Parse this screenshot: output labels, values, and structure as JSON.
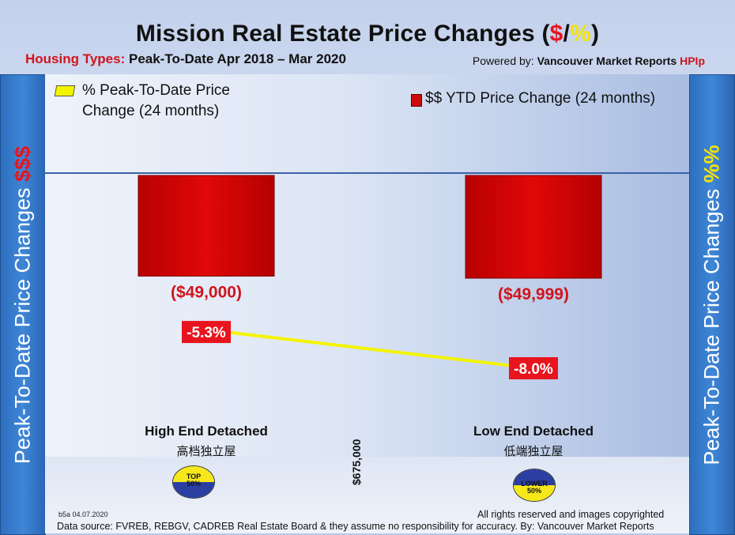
{
  "header": {
    "title_main": "Mission Real Estate Price Changes (",
    "title_dollar": "$",
    "title_slash": "/",
    "title_pct": "%",
    "title_close": ")",
    "housing_types_label": "Housing Types:",
    "period": "Peak-To-Date Apr 2018 – Mar 2020",
    "powered_by_label": "Powered by:",
    "powered_by_name": "Vancouver Market Reports",
    "powered_by_hpi": "HPIp"
  },
  "side_labels": {
    "left_text": "Peak-To-Date Price Changes ",
    "left_symbol": "$$$",
    "right_text": "Peak-To-Date  Price  Changes ",
    "right_symbol": "%%"
  },
  "legend": {
    "pct_line": "% Peak-To-Date Price",
    "pct_line_2": "Change (24 months)",
    "dollar_bar": "$$ YTD Price Change (24 months)"
  },
  "chart_data": {
    "type": "bar",
    "categories": [
      "High End Detached",
      "Low End Detached"
    ],
    "categories_sub": [
      "高档独立屋",
      "低端独立屋"
    ],
    "series": [
      {
        "name": "$$ YTD Price Change (24 months)",
        "values": [
          -49000,
          -49999
        ],
        "labels": [
          "($49,000)",
          "($49,999)"
        ],
        "color": "#cc0000"
      },
      {
        "name": "% Peak-To-Date Price Change (24 months)",
        "values": [
          -5.3,
          -8.0
        ],
        "labels": [
          "-5.3%",
          "-8.0%"
        ],
        "color": "#f4f400"
      }
    ]
  },
  "badges": {
    "top": [
      "TOP",
      "50%"
    ],
    "lower": [
      "LOWER",
      "50%"
    ]
  },
  "divider_price": "$675,000",
  "footer": {
    "code": "b5a 04.07.2020",
    "rights": "All rights reserved and  images copyrighted",
    "source": "Data source: FVREB, REBGV, CADREB Real Estate Board & they assume no responsibility for accuracy. By: Vancouver Market Reports"
  }
}
